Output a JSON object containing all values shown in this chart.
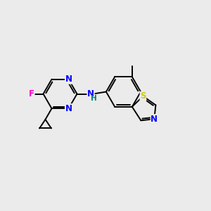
{
  "bg_color": "#ebebeb",
  "bond_color": "#000000",
  "bond_width": 1.4,
  "atom_colors": {
    "N": "#0000ff",
    "F": "#ff00cc",
    "S": "#cccc00",
    "H": "#008080",
    "C": "#000000"
  },
  "font_size": 8.5
}
